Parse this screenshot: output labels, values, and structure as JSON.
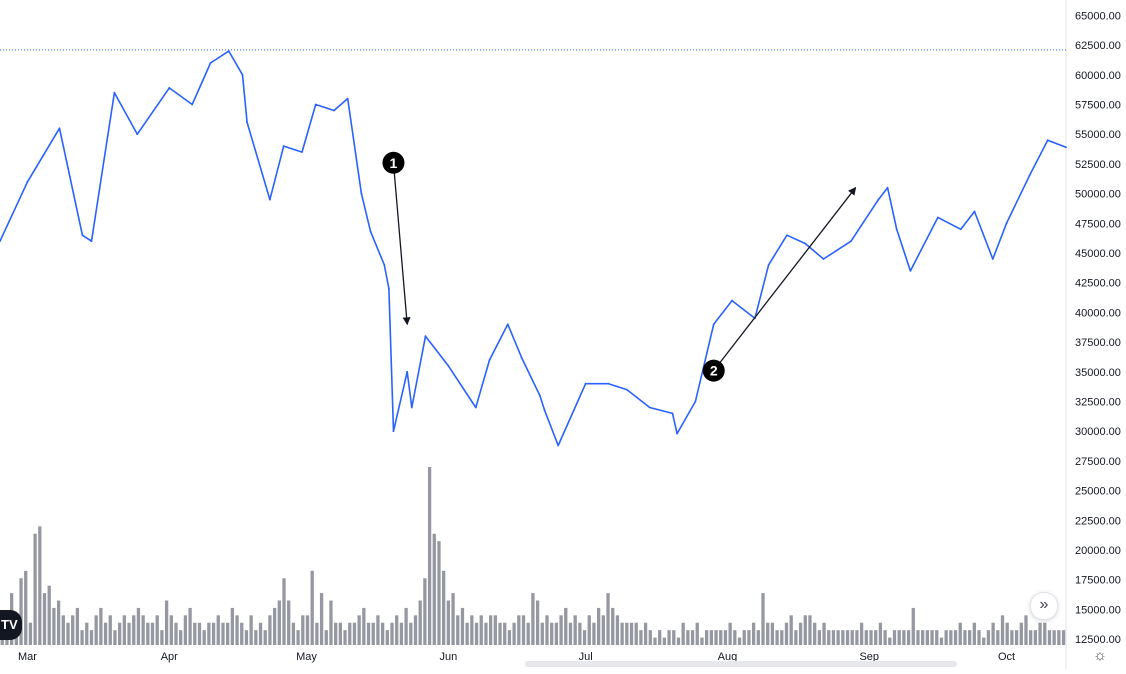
{
  "chart_data": {
    "type": "line",
    "price_axis": {
      "ticks": [
        "65000.00",
        "62500.00",
        "60000.00",
        "57500.00",
        "55000.00",
        "52500.00",
        "50000.00",
        "47500.00",
        "45000.00",
        "42500.00",
        "40000.00",
        "37500.00",
        "35000.00",
        "32500.00",
        "30000.00",
        "27500.00",
        "25000.00",
        "22500.00",
        "20000.00",
        "17500.00",
        "15000.00",
        "12500.00"
      ],
      "range": [
        11500,
        66300
      ]
    },
    "time_axis": {
      "ticks": [
        "Mar",
        "Apr",
        "May",
        "Jun",
        "Jul",
        "Aug",
        "Sep",
        "Oct"
      ],
      "range": [
        "2021-02-23",
        "2021-10-14"
      ]
    },
    "series": [
      {
        "color": "#2962ff",
        "x": [
          "2021-02-23",
          "2021-03-01",
          "2021-03-08",
          "2021-03-13",
          "2021-03-15",
          "2021-03-20",
          "2021-03-25",
          "2021-04-01",
          "2021-04-06",
          "2021-04-10",
          "2021-04-14",
          "2021-04-17",
          "2021-04-18",
          "2021-04-23",
          "2021-04-26",
          "2021-04-30",
          "2021-05-03",
          "2021-05-07",
          "2021-05-10",
          "2021-05-13",
          "2021-05-15",
          "2021-05-18",
          "2021-05-19",
          "2021-05-20",
          "2021-05-23",
          "2021-05-24",
          "2021-05-27",
          "2021-06-01",
          "2021-06-07",
          "2021-06-10",
          "2021-06-14",
          "2021-06-17",
          "2021-06-21",
          "2021-06-22",
          "2021-06-25",
          "2021-07-01",
          "2021-07-06",
          "2021-07-10",
          "2021-07-15",
          "2021-07-20",
          "2021-07-21",
          "2021-07-25",
          "2021-07-29",
          "2021-08-02",
          "2021-08-07",
          "2021-08-10",
          "2021-08-14",
          "2021-08-18",
          "2021-08-22",
          "2021-08-28",
          "2021-09-03",
          "2021-09-05",
          "2021-09-07",
          "2021-09-10",
          "2021-09-16",
          "2021-09-21",
          "2021-09-24",
          "2021-09-28",
          "2021-10-01",
          "2021-10-06",
          "2021-10-10",
          "2021-10-14"
        ],
        "y": [
          46000,
          51000,
          55500,
          46500,
          46000,
          58500,
          55000,
          58900,
          57500,
          61000,
          62000,
          60000,
          56000,
          49500,
          54000,
          53500,
          57500,
          57000,
          58000,
          50000,
          46800,
          44000,
          42000,
          30000,
          35000,
          32000,
          38000,
          35500,
          32000,
          36000,
          39000,
          36200,
          33000,
          31800,
          28800,
          34000,
          34000,
          33500,
          32000,
          31500,
          29800,
          32500,
          39000,
          41000,
          39500,
          44000,
          46500,
          45800,
          44500,
          46000,
          49500,
          50500,
          47000,
          43500,
          48000,
          47000,
          48500,
          44500,
          47500,
          51500,
          54500,
          53900
        ]
      }
    ],
    "volume_bars": {
      "color": "#9598a1",
      "values": [
        1,
        4,
        7,
        3,
        9,
        10,
        3,
        15,
        16,
        7,
        8,
        5,
        6,
        4,
        3,
        4,
        5,
        2,
        3,
        2,
        4,
        5,
        3,
        4,
        2,
        3,
        4,
        3,
        4,
        5,
        4,
        3,
        3,
        4,
        2,
        6,
        4,
        3,
        2,
        4,
        5,
        3,
        3,
        2,
        3,
        3,
        4,
        3,
        3,
        5,
        4,
        3,
        2,
        4,
        2,
        3,
        2,
        4,
        5,
        6,
        9,
        6,
        3,
        2,
        4,
        4,
        10,
        3,
        7,
        2,
        6,
        3,
        3,
        2,
        3,
        3,
        4,
        5,
        3,
        3,
        4,
        3,
        2,
        3,
        4,
        3,
        5,
        3,
        4,
        6,
        9,
        24,
        15,
        14,
        10,
        6,
        7,
        4,
        5,
        3,
        4,
        3,
        4,
        3,
        4,
        4,
        3,
        3,
        2,
        3,
        4,
        4,
        3,
        7,
        6,
        3,
        4,
        3,
        3,
        4,
        5,
        3,
        4,
        3,
        2,
        4,
        3,
        5,
        4,
        7,
        5,
        4,
        3,
        3,
        3,
        3,
        2,
        3,
        2,
        1,
        2,
        1,
        2,
        2,
        1,
        3,
        2,
        2,
        3,
        1,
        2,
        2,
        2,
        2,
        2,
        3,
        2,
        1,
        2,
        2,
        3,
        2,
        7,
        3,
        3,
        2,
        2,
        3,
        4,
        2,
        3,
        4,
        4,
        3,
        2,
        3,
        2,
        2,
        2,
        2,
        2,
        2,
        2,
        3,
        2,
        2,
        2,
        3,
        2,
        1,
        2,
        2,
        2,
        2,
        5,
        2,
        2,
        2,
        2,
        2,
        1,
        2,
        2,
        2,
        3,
        2,
        2,
        3,
        2,
        1,
        2,
        3,
        2,
        4,
        3,
        2,
        2,
        3,
        4,
        2,
        2,
        3,
        3,
        2,
        2,
        2,
        2
      ]
    },
    "annotations": [
      {
        "label": "1",
        "from": [
          "2021-05-20",
          52600
        ],
        "to": [
          "2021-05-23",
          39000
        ]
      },
      {
        "label": "2",
        "from": [
          "2021-07-29",
          35100
        ],
        "to": [
          "2021-08-29",
          50500
        ]
      }
    ],
    "reference_line": {
      "value": 62100,
      "style": "dotted",
      "color": "#2962ff"
    },
    "grid": false
  },
  "ui": {
    "logo_text": "TV",
    "scroll_icon": "double-chevron-right-icon",
    "settings_icon": "gear-icon"
  }
}
